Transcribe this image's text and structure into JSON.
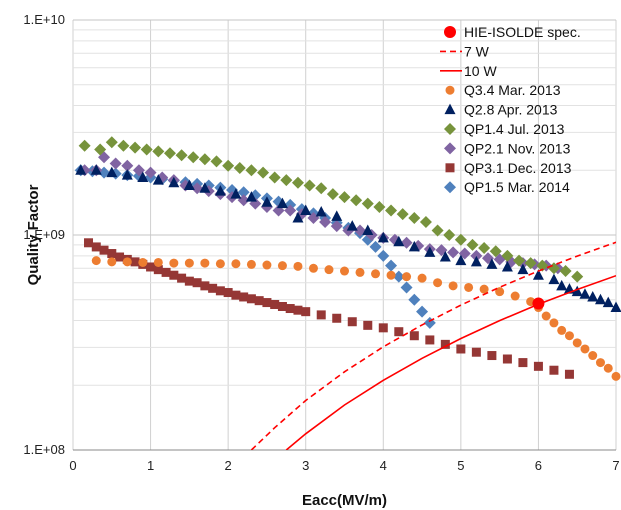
{
  "chart_data": {
    "type": "scatter",
    "title": "",
    "xlabel": "Eacc(MV/m)",
    "ylabel": "Quality Factor",
    "xlim": [
      0,
      7
    ],
    "ylim": [
      100000000,
      10000000000
    ],
    "y_scale": "log",
    "grid": true,
    "legend_placement": "top-right",
    "x_ticks": [
      "0",
      "1",
      "2",
      "3",
      "4",
      "5",
      "6",
      "7"
    ],
    "y_ticks": [
      "1.E+08",
      "1.E+09",
      "1.E+10"
    ],
    "series": [
      {
        "name": "HIE-ISOLDE spec.",
        "marker": "circle-large",
        "color": "#ff0000",
        "points": [
          [
            6.0,
            480000000
          ]
        ]
      },
      {
        "name": "7 W",
        "line": "dashed",
        "color": "#ff0000",
        "points": [
          [
            2.3,
            100000000
          ],
          [
            2.6,
            127000000
          ],
          [
            3.0,
            170000000
          ],
          [
            3.5,
            231000000
          ],
          [
            4.0,
            302000000
          ],
          [
            4.5,
            382000000
          ],
          [
            5.0,
            472000000
          ],
          [
            5.5,
            571000000
          ],
          [
            6.0,
            680000000
          ],
          [
            6.5,
            798000000
          ],
          [
            7.0,
            925000000
          ]
        ]
      },
      {
        "name": "10 W",
        "line": "solid",
        "color": "#ff0000",
        "points": [
          [
            2.75,
            100000000
          ],
          [
            3.0,
            119000000
          ],
          [
            3.5,
            162000000
          ],
          [
            4.0,
            211000000
          ],
          [
            4.5,
            267000000
          ],
          [
            5.0,
            330000000
          ],
          [
            5.5,
            400000000
          ],
          [
            6.0,
            476000000
          ],
          [
            6.5,
            558000000
          ],
          [
            7.0,
            647000000
          ]
        ]
      },
      {
        "name": "Q3.4  Mar. 2013",
        "marker": "circle",
        "color": "#ed7d31",
        "points": [
          [
            0.3,
            760000000
          ],
          [
            0.5,
            750000000
          ],
          [
            0.7,
            750000000
          ],
          [
            0.9,
            745000000
          ],
          [
            1.1,
            745000000
          ],
          [
            1.3,
            740000000
          ],
          [
            1.5,
            740000000
          ],
          [
            1.7,
            740000000
          ],
          [
            1.9,
            735000000
          ],
          [
            2.1,
            735000000
          ],
          [
            2.3,
            730000000
          ],
          [
            2.5,
            725000000
          ],
          [
            2.7,
            720000000
          ],
          [
            2.9,
            715000000
          ],
          [
            3.1,
            700000000
          ],
          [
            3.3,
            690000000
          ],
          [
            3.5,
            680000000
          ],
          [
            3.7,
            670000000
          ],
          [
            3.9,
            660000000
          ],
          [
            4.1,
            650000000
          ],
          [
            4.3,
            640000000
          ],
          [
            4.5,
            630000000
          ],
          [
            4.7,
            600000000
          ],
          [
            4.9,
            580000000
          ],
          [
            5.1,
            570000000
          ],
          [
            5.3,
            560000000
          ],
          [
            5.5,
            545000000
          ],
          [
            5.7,
            520000000
          ],
          [
            5.9,
            490000000
          ],
          [
            6.0,
            460000000
          ],
          [
            6.1,
            420000000
          ],
          [
            6.2,
            390000000
          ],
          [
            6.3,
            360000000
          ],
          [
            6.4,
            340000000
          ],
          [
            6.5,
            315000000
          ],
          [
            6.6,
            295000000
          ],
          [
            6.7,
            275000000
          ],
          [
            6.8,
            255000000
          ],
          [
            6.9,
            240000000
          ],
          [
            7.0,
            220000000
          ]
        ]
      },
      {
        "name": "Q2.8 Apr. 2013",
        "marker": "triangle",
        "color": "#002060",
        "points": [
          [
            0.1,
            2000000000
          ],
          [
            0.3,
            2000000000
          ],
          [
            0.5,
            1950000000
          ],
          [
            0.7,
            1900000000
          ],
          [
            0.9,
            1850000000
          ],
          [
            1.1,
            1800000000
          ],
          [
            1.3,
            1750000000
          ],
          [
            1.5,
            1700000000
          ],
          [
            1.7,
            1650000000
          ],
          [
            1.9,
            1600000000
          ],
          [
            2.1,
            1550000000
          ],
          [
            2.3,
            1500000000
          ],
          [
            2.5,
            1420000000
          ],
          [
            2.7,
            1400000000
          ],
          [
            2.9,
            1200000000
          ],
          [
            3.0,
            1300000000
          ],
          [
            3.2,
            1280000000
          ],
          [
            3.4,
            1220000000
          ],
          [
            3.6,
            1100000000
          ],
          [
            3.8,
            1050000000
          ],
          [
            4.0,
            970000000
          ],
          [
            4.2,
            930000000
          ],
          [
            4.4,
            880000000
          ],
          [
            4.6,
            830000000
          ],
          [
            4.8,
            790000000
          ],
          [
            5.0,
            760000000
          ],
          [
            5.2,
            750000000
          ],
          [
            5.4,
            730000000
          ],
          [
            5.6,
            710000000
          ],
          [
            5.8,
            690000000
          ],
          [
            6.0,
            650000000
          ],
          [
            6.2,
            620000000
          ],
          [
            6.3,
            580000000
          ],
          [
            6.4,
            560000000
          ],
          [
            6.5,
            545000000
          ],
          [
            6.6,
            530000000
          ],
          [
            6.7,
            515000000
          ],
          [
            6.8,
            500000000
          ],
          [
            6.9,
            485000000
          ],
          [
            7.0,
            460000000
          ]
        ]
      },
      {
        "name": "QP1.4 Jul. 2013",
        "marker": "diamond",
        "color": "#77933c",
        "points": [
          [
            0.15,
            2600000000
          ],
          [
            0.35,
            2500000000
          ],
          [
            0.5,
            2700000000
          ],
          [
            0.65,
            2600000000
          ],
          [
            0.8,
            2550000000
          ],
          [
            0.95,
            2500000000
          ],
          [
            1.1,
            2450000000
          ],
          [
            1.25,
            2400000000
          ],
          [
            1.4,
            2350000000
          ],
          [
            1.55,
            2300000000
          ],
          [
            1.7,
            2250000000
          ],
          [
            1.85,
            2200000000
          ],
          [
            2.0,
            2100000000
          ],
          [
            2.15,
            2050000000
          ],
          [
            2.3,
            2000000000
          ],
          [
            2.45,
            1950000000
          ],
          [
            2.6,
            1850000000
          ],
          [
            2.75,
            1800000000
          ],
          [
            2.9,
            1750000000
          ],
          [
            3.05,
            1700000000
          ],
          [
            3.2,
            1650000000
          ],
          [
            3.35,
            1550000000
          ],
          [
            3.5,
            1500000000
          ],
          [
            3.65,
            1450000000
          ],
          [
            3.8,
            1400000000
          ],
          [
            3.95,
            1350000000
          ],
          [
            4.1,
            1300000000
          ],
          [
            4.25,
            1250000000
          ],
          [
            4.4,
            1200000000
          ],
          [
            4.55,
            1150000000
          ],
          [
            4.7,
            1050000000
          ],
          [
            4.85,
            1000000000
          ],
          [
            5.0,
            950000000
          ],
          [
            5.15,
            900000000
          ],
          [
            5.3,
            870000000
          ],
          [
            5.45,
            840000000
          ],
          [
            5.6,
            800000000
          ],
          [
            5.75,
            760000000
          ],
          [
            5.9,
            740000000
          ],
          [
            6.05,
            720000000
          ],
          [
            6.2,
            700000000
          ],
          [
            6.35,
            680000000
          ],
          [
            6.5,
            640000000
          ]
        ]
      },
      {
        "name": "QP2.1 Nov. 2013",
        "marker": "diamond",
        "color": "#8064a2",
        "points": [
          [
            0.15,
            2000000000
          ],
          [
            0.3,
            2000000000
          ],
          [
            0.4,
            2300000000
          ],
          [
            0.55,
            2150000000
          ],
          [
            0.7,
            2100000000
          ],
          [
            0.85,
            2000000000
          ],
          [
            1.0,
            1950000000
          ],
          [
            1.15,
            1850000000
          ],
          [
            1.3,
            1800000000
          ],
          [
            1.45,
            1700000000
          ],
          [
            1.6,
            1650000000
          ],
          [
            1.75,
            1600000000
          ],
          [
            1.9,
            1550000000
          ],
          [
            2.05,
            1500000000
          ],
          [
            2.2,
            1450000000
          ],
          [
            2.35,
            1400000000
          ],
          [
            2.5,
            1350000000
          ],
          [
            2.65,
            1300000000
          ],
          [
            2.8,
            1300000000
          ],
          [
            2.95,
            1250000000
          ],
          [
            3.1,
            1200000000
          ],
          [
            3.25,
            1150000000
          ],
          [
            3.4,
            1100000000
          ],
          [
            3.55,
            1050000000
          ],
          [
            3.7,
            1050000000
          ],
          [
            3.85,
            1000000000
          ],
          [
            4.0,
            970000000
          ],
          [
            4.15,
            950000000
          ],
          [
            4.3,
            920000000
          ],
          [
            4.45,
            890000000
          ],
          [
            4.6,
            860000000
          ],
          [
            4.75,
            850000000
          ],
          [
            4.9,
            830000000
          ],
          [
            5.05,
            820000000
          ],
          [
            5.2,
            800000000
          ],
          [
            5.35,
            780000000
          ],
          [
            5.5,
            770000000
          ],
          [
            5.65,
            750000000
          ],
          [
            5.8,
            740000000
          ],
          [
            5.95,
            730000000
          ],
          [
            6.1,
            720000000
          ],
          [
            6.25,
            700000000
          ]
        ]
      },
      {
        "name": "QP3.1 Dec. 2013",
        "marker": "square",
        "color": "#953735",
        "points": [
          [
            0.2,
            920000000
          ],
          [
            0.3,
            880000000
          ],
          [
            0.4,
            850000000
          ],
          [
            0.5,
            820000000
          ],
          [
            0.6,
            790000000
          ],
          [
            0.7,
            770000000
          ],
          [
            0.8,
            750000000
          ],
          [
            0.9,
            730000000
          ],
          [
            1.0,
            710000000
          ],
          [
            1.1,
            690000000
          ],
          [
            1.2,
            670000000
          ],
          [
            1.3,
            650000000
          ],
          [
            1.4,
            630000000
          ],
          [
            1.5,
            610000000
          ],
          [
            1.6,
            600000000
          ],
          [
            1.7,
            580000000
          ],
          [
            1.8,
            565000000
          ],
          [
            1.9,
            550000000
          ],
          [
            2.0,
            540000000
          ],
          [
            2.1,
            525000000
          ],
          [
            2.2,
            515000000
          ],
          [
            2.3,
            505000000
          ],
          [
            2.4,
            495000000
          ],
          [
            2.5,
            485000000
          ],
          [
            2.6,
            475000000
          ],
          [
            2.7,
            465000000
          ],
          [
            2.8,
            455000000
          ],
          [
            2.9,
            447000000
          ],
          [
            3.0,
            440000000
          ],
          [
            3.2,
            425000000
          ],
          [
            3.4,
            410000000
          ],
          [
            3.6,
            395000000
          ],
          [
            3.8,
            380000000
          ],
          [
            4.0,
            370000000
          ],
          [
            4.2,
            355000000
          ],
          [
            4.4,
            340000000
          ],
          [
            4.6,
            325000000
          ],
          [
            4.8,
            310000000
          ],
          [
            5.0,
            295000000
          ],
          [
            5.2,
            285000000
          ],
          [
            5.4,
            275000000
          ],
          [
            5.6,
            265000000
          ],
          [
            5.8,
            255000000
          ],
          [
            6.0,
            245000000
          ],
          [
            6.2,
            235000000
          ],
          [
            6.4,
            225000000
          ]
        ]
      },
      {
        "name": "QP1.5 Mar. 2014",
        "marker": "diamond",
        "color": "#4f81bd",
        "points": [
          [
            0.1,
            2000000000
          ],
          [
            0.25,
            1980000000
          ],
          [
            0.4,
            1950000000
          ],
          [
            0.55,
            1930000000
          ],
          [
            0.7,
            1900000000
          ],
          [
            0.85,
            1880000000
          ],
          [
            1.0,
            1850000000
          ],
          [
            1.15,
            1820000000
          ],
          [
            1.3,
            1790000000
          ],
          [
            1.45,
            1760000000
          ],
          [
            1.6,
            1730000000
          ],
          [
            1.75,
            1700000000
          ],
          [
            1.9,
            1660000000
          ],
          [
            2.05,
            1620000000
          ],
          [
            2.2,
            1580000000
          ],
          [
            2.35,
            1530000000
          ],
          [
            2.5,
            1480000000
          ],
          [
            2.65,
            1430000000
          ],
          [
            2.8,
            1380000000
          ],
          [
            2.95,
            1320000000
          ],
          [
            3.1,
            1260000000
          ],
          [
            3.25,
            1200000000
          ],
          [
            3.4,
            1140000000
          ],
          [
            3.55,
            1080000000
          ],
          [
            3.7,
            1020000000
          ],
          [
            3.8,
            950000000
          ],
          [
            3.9,
            880000000
          ],
          [
            4.0,
            800000000
          ],
          [
            4.1,
            720000000
          ],
          [
            4.2,
            640000000
          ],
          [
            4.3,
            570000000
          ],
          [
            4.4,
            500000000
          ],
          [
            4.5,
            440000000
          ],
          [
            4.6,
            390000000
          ]
        ]
      }
    ]
  }
}
